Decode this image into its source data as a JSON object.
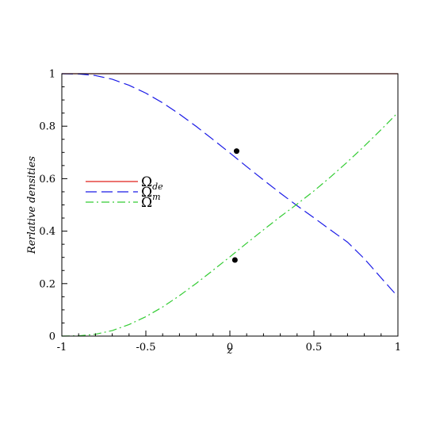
{
  "chart_data": {
    "type": "line",
    "title": "",
    "xlabel": "z",
    "ylabel": "Rerlative densities",
    "xlim": [
      -1,
      1
    ],
    "ylim": [
      0,
      1
    ],
    "grid": false,
    "legend_placement": "left-middle",
    "x_ticks": [
      {
        "value": -1,
        "label": "-1"
      },
      {
        "value": -0.5,
        "label": "-0.5"
      },
      {
        "value": 0,
        "label": "0"
      },
      {
        "value": 0.5,
        "label": "0.5"
      },
      {
        "value": 1,
        "label": "1"
      }
    ],
    "y_ticks": [
      {
        "value": 0,
        "label": "0"
      },
      {
        "value": 0.2,
        "label": "0.2"
      },
      {
        "value": 0.4,
        "label": "0.4"
      },
      {
        "value": 0.6,
        "label": "0.6"
      },
      {
        "value": 0.8,
        "label": "0.8"
      },
      {
        "value": 1,
        "label": "1"
      }
    ],
    "x": [
      -1,
      -0.9,
      -0.8,
      -0.7,
      -0.6,
      -0.5,
      -0.4,
      -0.3,
      -0.2,
      -0.1,
      0,
      0.1,
      0.2,
      0.3,
      0.4,
      0.5,
      0.6,
      0.7,
      0.8,
      0.9,
      1
    ],
    "series": [
      {
        "name": "Ω",
        "subscript": "de",
        "color": "#e0201b",
        "style": "solid",
        "values": [
          1,
          1,
          1,
          1,
          1,
          1,
          1,
          1,
          1,
          1,
          1,
          1,
          1,
          1,
          1,
          1,
          1,
          1,
          1,
          1,
          1
        ]
      },
      {
        "name": "Ω",
        "subscript": "m",
        "color": "#1a1ae6",
        "style": "dashed",
        "values": [
          1.0,
          0.999,
          0.993,
          0.979,
          0.956,
          0.926,
          0.889,
          0.846,
          0.799,
          0.749,
          0.698,
          0.646,
          0.595,
          0.545,
          0.497,
          0.451,
          0.404,
          0.358,
          0.295,
          0.222,
          0.15
        ]
      },
      {
        "name": "Ω",
        "subscript": "",
        "color": "#33cc33",
        "style": "dash-dot",
        "values": [
          0.0,
          0.001,
          0.007,
          0.021,
          0.044,
          0.074,
          0.111,
          0.154,
          0.201,
          0.251,
          0.302,
          0.354,
          0.405,
          0.455,
          0.503,
          0.553,
          0.607,
          0.664,
          0.724,
          0.787,
          0.852
        ]
      }
    ],
    "markers": [
      {
        "x": 0.04,
        "y": 0.705,
        "color": "#000000"
      },
      {
        "x": 0.03,
        "y": 0.29,
        "color": "#000000"
      }
    ]
  }
}
